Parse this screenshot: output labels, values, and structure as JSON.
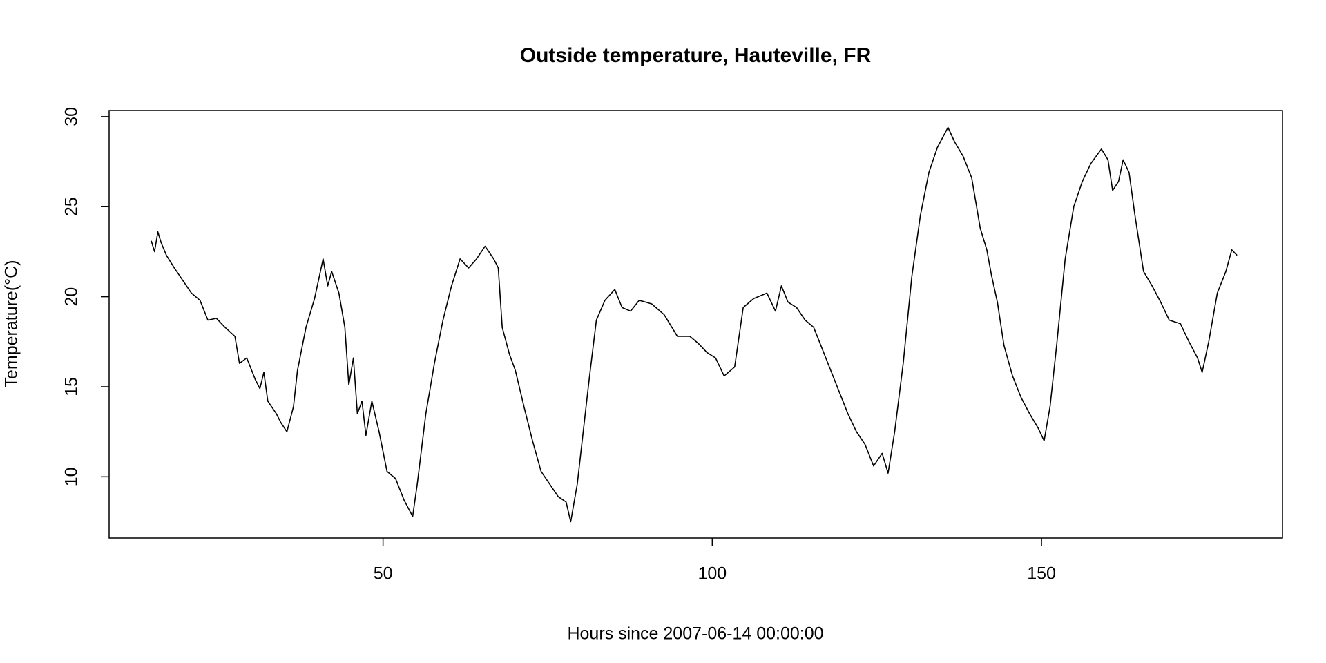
{
  "chart_data": {
    "type": "line",
    "title": "Outside temperature, Hauteville, FR",
    "x_label": "Hours since 2007-06-14 00:00:00",
    "y_label": "Temperature(°C)",
    "xlim": [
      8.4,
      186.6
    ],
    "ylim": [
      6.6,
      30.34
    ],
    "xticks": [
      50,
      100,
      150
    ],
    "yticks": [
      10,
      15,
      20,
      25,
      30
    ],
    "grid": false,
    "series": [
      {
        "color": "#000000",
        "x": [
          14.8,
          15.3,
          15.8,
          16.3,
          17.1,
          18.3,
          19.6,
          20.9,
          22.2,
          23.4,
          24.7,
          26.0,
          27.5,
          28.2,
          29.3,
          30.6,
          31.3,
          31.9,
          32.5,
          33.8,
          34.5,
          35.4,
          36.4,
          37.0,
          38.3,
          39.6,
          40.9,
          41.6,
          42.2,
          43.3,
          44.2,
          44.8,
          45.5,
          46.1,
          46.8,
          47.4,
          48.3,
          49.4,
          50.6,
          51.9,
          53.2,
          54.5,
          55.2,
          56.5,
          57.8,
          59.1,
          60.4,
          61.7,
          63.0,
          64.2,
          65.5,
          66.8,
          67.5,
          68.1,
          69.2,
          70.1,
          71.4,
          72.7,
          74.0,
          75.3,
          76.6,
          77.8,
          78.5,
          79.5,
          80.4,
          81.3,
          82.4,
          83.7,
          85.2,
          86.3,
          87.6,
          88.9,
          90.8,
          92.7,
          94.7,
          96.6,
          97.9,
          99.2,
          100.5,
          101.8,
          103.4,
          104.7,
          106.3,
          108.3,
          109.6,
          110.5,
          111.5,
          112.8,
          114.1,
          115.4,
          116.7,
          118.0,
          119.3,
          120.6,
          121.9,
          123.2,
          124.5,
          125.8,
          126.7,
          127.7,
          129.0,
          130.3,
          131.6,
          132.9,
          134.2,
          135.8,
          136.8,
          138.1,
          139.4,
          140.7,
          141.7,
          142.4,
          143.3,
          144.3,
          145.6,
          146.9,
          148.2,
          149.5,
          150.4,
          151.3,
          152.3,
          153.6,
          154.9,
          156.2,
          157.5,
          159.1,
          160.1,
          160.8,
          161.7,
          162.4,
          163.3,
          164.2,
          165.5,
          166.8,
          168.1,
          169.4,
          171.1,
          172.4,
          173.7,
          174.4,
          175.4,
          176.7,
          178.0,
          178.9,
          179.7
        ],
        "values": [
          23.1,
          22.5,
          23.6,
          23.0,
          22.3,
          21.6,
          20.9,
          20.2,
          19.8,
          18.7,
          18.8,
          18.3,
          17.8,
          16.3,
          16.6,
          15.4,
          14.9,
          15.8,
          14.2,
          13.5,
          13.0,
          12.5,
          13.9,
          15.9,
          18.3,
          19.9,
          22.1,
          20.6,
          21.4,
          20.2,
          18.3,
          15.1,
          16.6,
          13.5,
          14.2,
          12.3,
          14.2,
          12.5,
          10.3,
          9.9,
          8.7,
          7.8,
          9.6,
          13.5,
          16.3,
          18.7,
          20.6,
          22.1,
          21.6,
          22.1,
          22.8,
          22.1,
          21.6,
          18.3,
          16.8,
          15.9,
          13.9,
          12.0,
          10.3,
          9.6,
          8.9,
          8.6,
          7.5,
          9.6,
          12.5,
          15.4,
          18.7,
          19.8,
          20.4,
          19.4,
          19.2,
          19.8,
          19.6,
          19.0,
          17.8,
          17.8,
          17.4,
          16.9,
          16.6,
          15.6,
          16.1,
          19.4,
          19.9,
          20.2,
          19.2,
          20.6,
          19.7,
          19.4,
          18.7,
          18.3,
          17.1,
          15.9,
          14.7,
          13.5,
          12.5,
          11.8,
          10.6,
          11.3,
          10.2,
          12.5,
          16.3,
          21.1,
          24.5,
          26.9,
          28.3,
          29.4,
          28.6,
          27.8,
          26.6,
          23.8,
          22.6,
          21.2,
          19.7,
          17.3,
          15.6,
          14.4,
          13.5,
          12.7,
          12.0,
          13.9,
          17.3,
          22.1,
          25.0,
          26.4,
          27.4,
          28.2,
          27.6,
          25.9,
          26.4,
          27.6,
          26.9,
          24.5,
          21.4,
          20.6,
          19.7,
          18.7,
          18.5,
          17.5,
          16.6,
          15.8,
          17.5,
          20.2,
          21.4,
          22.6,
          22.3
        ]
      }
    ]
  }
}
